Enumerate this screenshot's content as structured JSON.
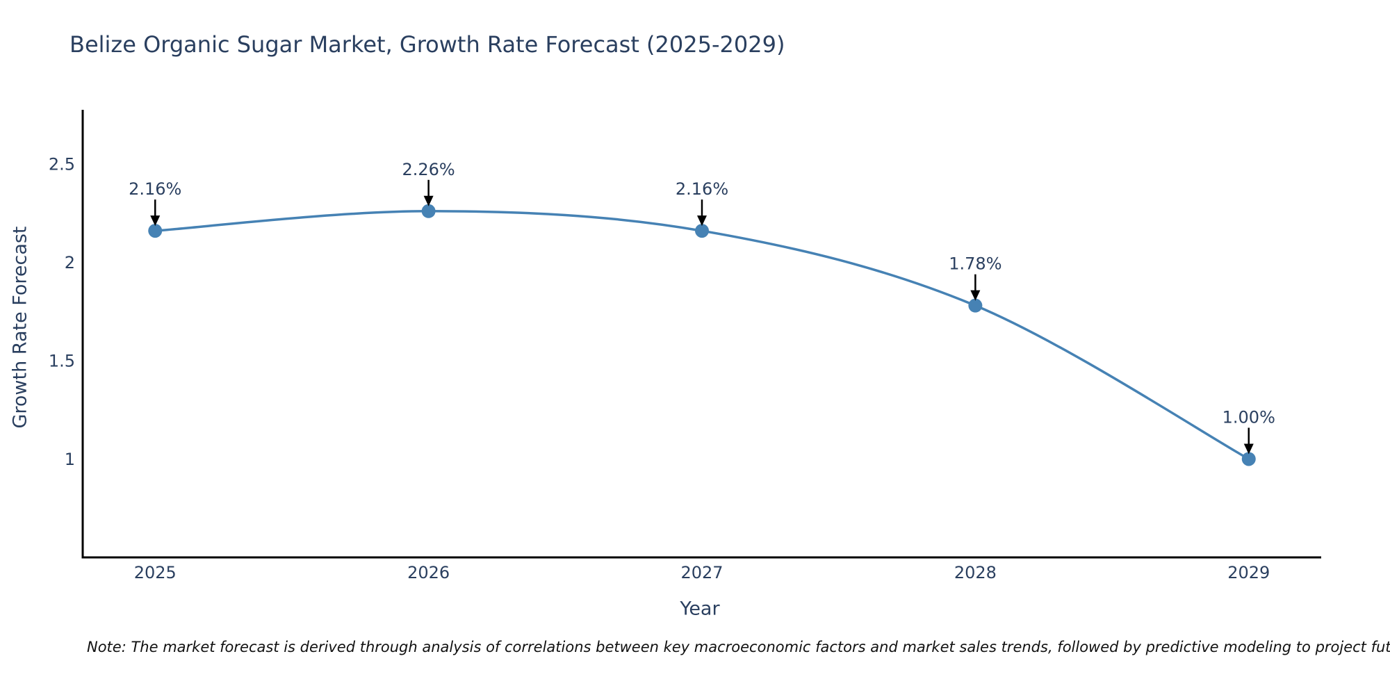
{
  "note": "Note: The market forecast is derived through analysis of correlations between key macroeconomic factors and market sales trends, followed by predictive modeling to project future sales",
  "chart_data": {
    "type": "line",
    "title": "Belize Organic Sugar Market, Growth Rate Forecast (2025-2029)",
    "xlabel": "Year",
    "ylabel": "Growth Rate Forecast",
    "x": [
      2025,
      2026,
      2027,
      2028,
      2029
    ],
    "values": [
      2.16,
      2.26,
      2.16,
      1.78,
      1.0
    ],
    "point_labels": [
      "2.16%",
      "2.26%",
      "2.16%",
      "1.78%",
      "1.00%"
    ],
    "x_tick_labels": [
      "2025",
      "2026",
      "2027",
      "2028",
      "2029"
    ],
    "y_ticks": [
      1,
      1.5,
      2,
      2.5
    ],
    "y_tick_labels": [
      "1",
      "1.5",
      "2",
      "2.5"
    ],
    "xlim": [
      2024.735,
      2029.265
    ],
    "ylim": [
      0.5,
      2.775
    ],
    "grid": false,
    "legend": "none",
    "line_shape": "spline",
    "colors": {
      "line": "#4682b4",
      "marker": "#4682b4",
      "axis": "#000000",
      "annotation_text": "#2a3f5f",
      "arrow": "#000000",
      "tick_text": "#2a3f5f"
    }
  }
}
